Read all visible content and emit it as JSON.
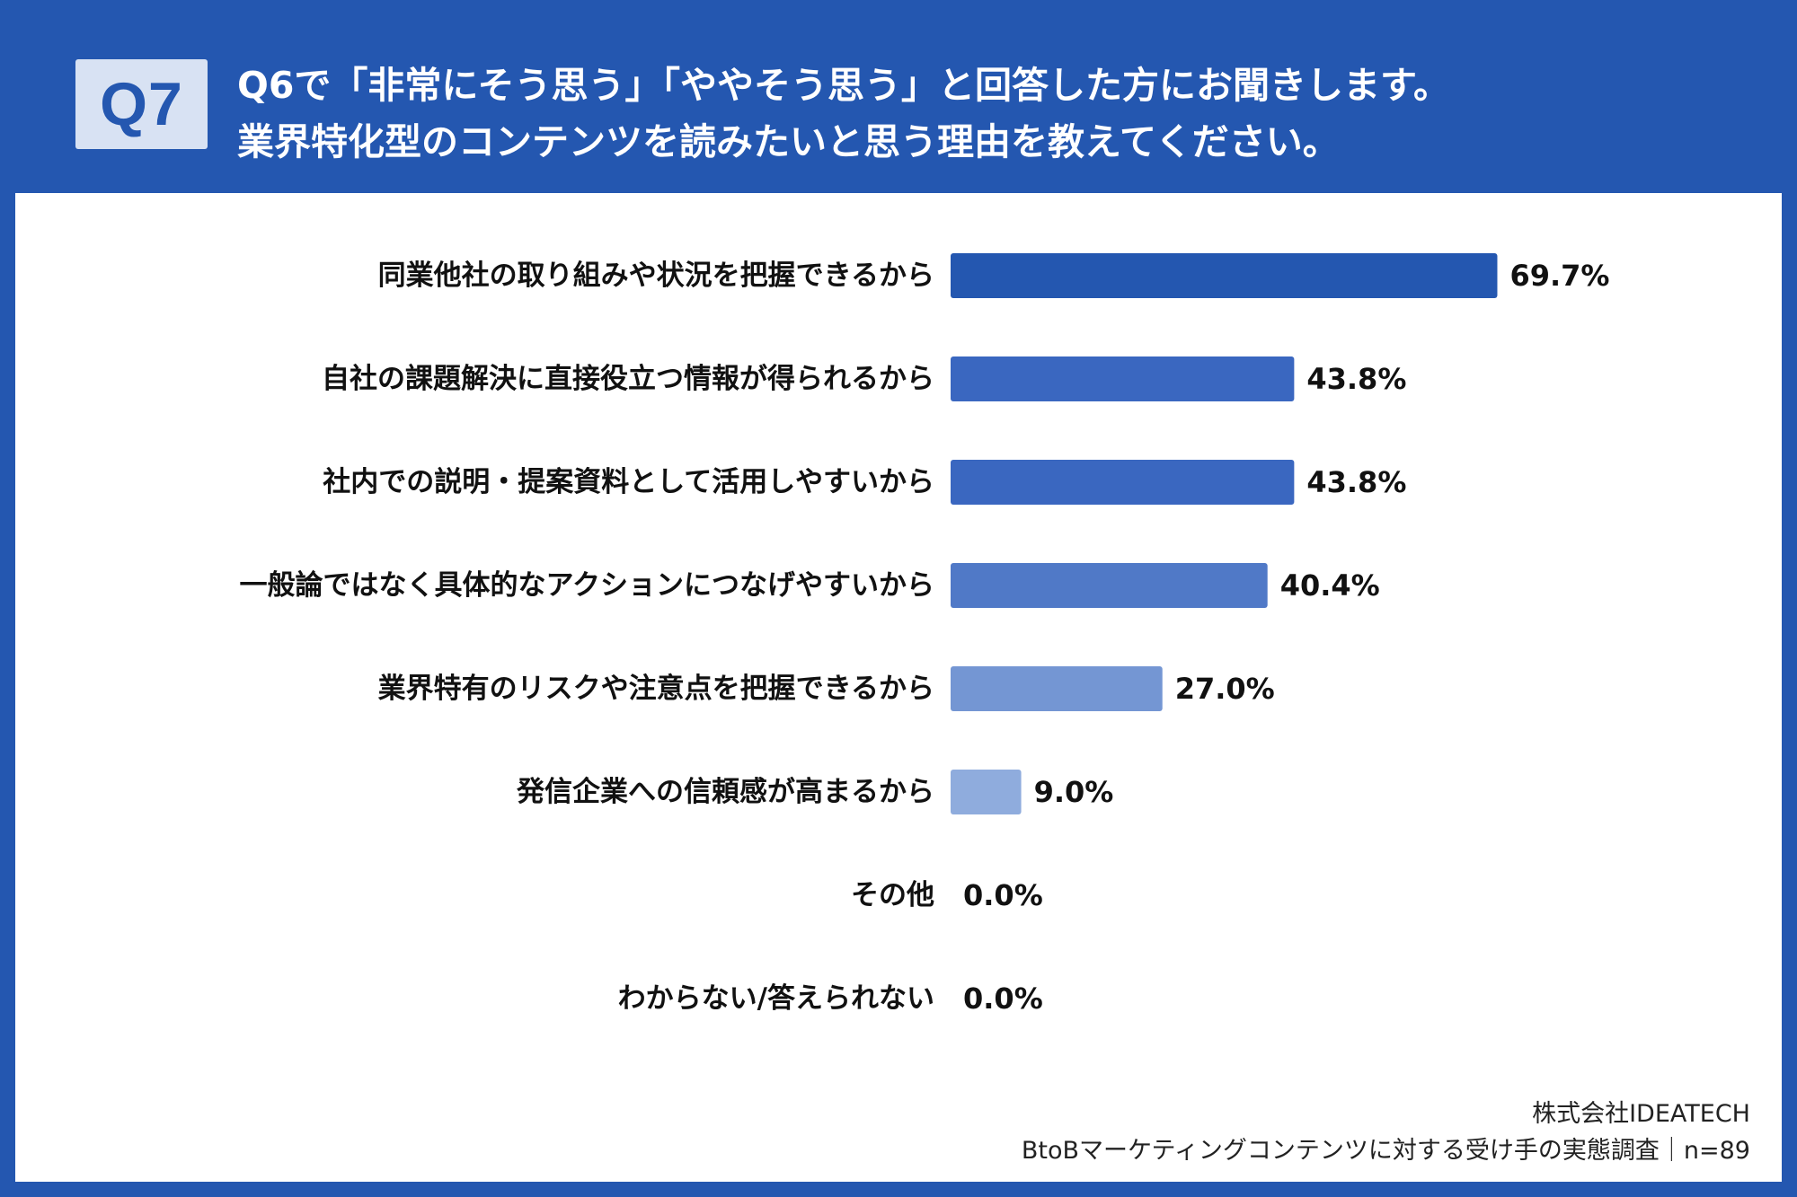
{
  "header": {
    "badge": "Q7",
    "question_line1": "Q6で「非常にそう思う」「ややそう思う」と回答した方にお聞きします。",
    "question_line2": "業界特化型のコンテンツを読みたいと思う理由を教えてください。"
  },
  "chart_data": {
    "type": "bar",
    "orientation": "horizontal",
    "categories": [
      "同業他社の取り組みや状況を把握できるから",
      "自社の課題解決に直接役立つ情報が得られるから",
      "社内での説明・提案資料として活用しやすいから",
      "一般論ではなく具体的なアクションにつなげやすいから",
      "業界特有のリスクや注意点を把握できるから",
      "発信企業への信頼感が高まるから",
      "その他",
      "わからない/答えられない"
    ],
    "values": [
      69.7,
      43.8,
      43.8,
      40.4,
      27.0,
      9.0,
      0.0,
      0.0
    ],
    "value_labels": [
      "69.7%",
      "43.8%",
      "43.8%",
      "40.4%",
      "27.0%",
      "9.0%",
      "0.0%",
      "0.0%"
    ],
    "bar_colors": [
      "#2457b0",
      "#3a67c0",
      "#3a67c0",
      "#5079c7",
      "#7496d3",
      "#8facdd",
      "#a9c0e6",
      "#a9c0e6"
    ],
    "unit": "%"
  },
  "footer": {
    "company": "株式会社IDEATECH",
    "survey": "BtoBマーケティングコンテンツに対する受け手の実態調査｜n=89"
  }
}
